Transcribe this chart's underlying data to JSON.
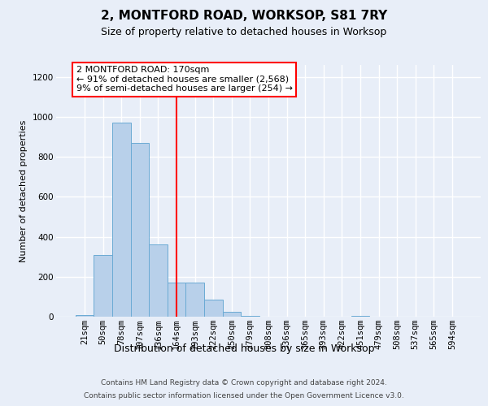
{
  "title": "2, MONTFORD ROAD, WORKSOP, S81 7RY",
  "subtitle": "Size of property relative to detached houses in Worksop",
  "xlabel": "Distribution of detached houses by size in Worksop",
  "ylabel": "Number of detached properties",
  "footer_line1": "Contains HM Land Registry data © Crown copyright and database right 2024.",
  "footer_line2": "Contains public sector information licensed under the Open Government Licence v3.0.",
  "categories": [
    "21sqm",
    "50sqm",
    "78sqm",
    "107sqm",
    "136sqm",
    "164sqm",
    "193sqm",
    "222sqm",
    "250sqm",
    "279sqm",
    "308sqm",
    "336sqm",
    "365sqm",
    "393sqm",
    "422sqm",
    "451sqm",
    "479sqm",
    "508sqm",
    "537sqm",
    "565sqm",
    "594sqm"
  ],
  "values": [
    10,
    310,
    970,
    870,
    360,
    170,
    170,
    85,
    25,
    5,
    0,
    0,
    0,
    0,
    0,
    5,
    0,
    0,
    0,
    0,
    0
  ],
  "bar_color": "#b8d0ea",
  "bar_edge_color": "#6aaad4",
  "ylim": [
    0,
    1260
  ],
  "yticks": [
    0,
    200,
    400,
    600,
    800,
    1000,
    1200
  ],
  "property_line_x": 5.0,
  "annotation_text_line1": "2 MONTFORD ROAD: 170sqm",
  "annotation_text_line2": "← 91% of detached houses are smaller (2,568)",
  "annotation_text_line3": "9% of semi-detached houses are larger (254) →",
  "annotation_box_color": "white",
  "annotation_box_edge_color": "red",
  "vline_color": "red",
  "bg_color": "#e8eef8",
  "grid_color": "white",
  "title_fontsize": 11,
  "subtitle_fontsize": 9,
  "ylabel_fontsize": 8,
  "xlabel_fontsize": 9,
  "footer_fontsize": 6.5,
  "annotation_fontsize": 8,
  "tick_fontsize": 7.5
}
